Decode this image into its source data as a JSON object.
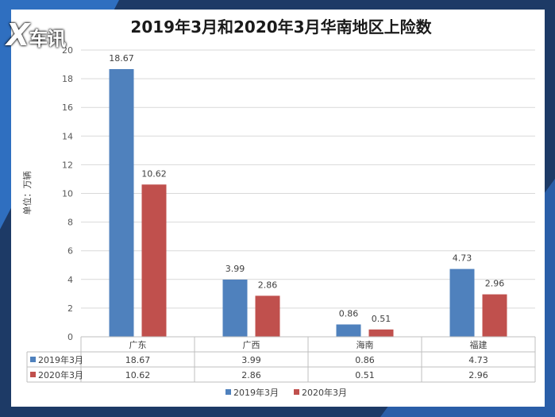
{
  "chart_data": {
    "type": "bar",
    "title": "2019年3月和2020年3月华南地区上险数",
    "ylabel": "单位：万辆",
    "categories": [
      "广东",
      "广西",
      "海南",
      "福建"
    ],
    "series": [
      {
        "name": "2019年3月",
        "values": [
          18.67,
          3.99,
          0.86,
          4.73
        ],
        "labels": [
          "18.67",
          "3.99",
          "0.86",
          "4.73"
        ],
        "color": "#4f81bd"
      },
      {
        "name": "2020年3月",
        "values": [
          10.62,
          2.86,
          0.51,
          2.96
        ],
        "labels": [
          "10.62",
          "2.86",
          "0.51",
          "2.96"
        ],
        "color": "#c0504d"
      }
    ],
    "ylim": [
      0,
      20
    ],
    "yticks": [
      0,
      2,
      4,
      6,
      8,
      10,
      12,
      14,
      16,
      18,
      20
    ],
    "grid": true,
    "data_table": true,
    "legend": "bottom"
  },
  "watermark": {
    "text": "X车讯"
  }
}
